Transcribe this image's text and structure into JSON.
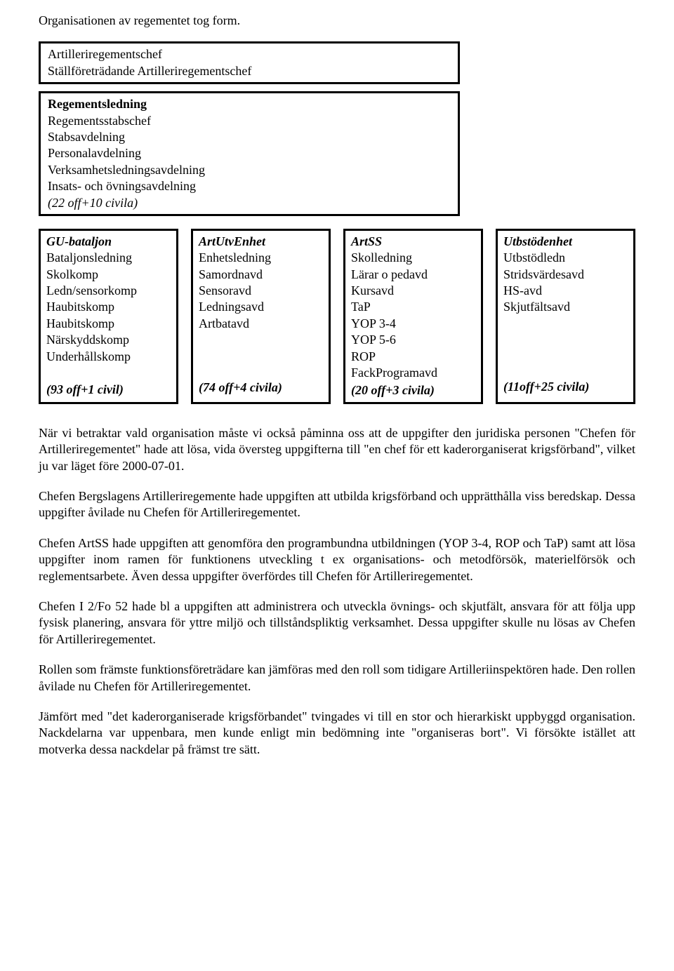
{
  "intro": "Organisationen av regementet tog form.",
  "box_top": {
    "line1": "Artilleriregementschef",
    "line2": "Ställföreträdande Artilleriregementschef"
  },
  "box_mid": {
    "head": "Regementsledning",
    "lines": [
      "Regementsstabschef",
      "Stabsavdelning",
      "Personalavdelning",
      "Verksamhetsledningsavdelning",
      "Insats- och övningsavdelning"
    ],
    "tail": "(22 off+10 civila)"
  },
  "units": [
    {
      "title": "GU-bataljon",
      "lines": [
        "Bataljonsledning",
        "Skolkomp",
        "Ledn/sensorkomp",
        "Haubitskomp",
        "Haubitskomp",
        "Närskyddskomp",
        "Underhållskomp"
      ],
      "spacers": 1,
      "tail": "(93 off+1 civil)"
    },
    {
      "title": "ArtUtvEnhet",
      "lines": [
        "Enhetsledning",
        "Samordnavd",
        "Sensoravd",
        "Ledningsavd",
        "Artbatavd"
      ],
      "spacers": 3,
      "tail": "(74 off+4 civila)"
    },
    {
      "title": "ArtSS",
      "lines": [
        "Skolledning",
        "Lärar o pedavd",
        "Kursavd",
        "TaP",
        "YOP 3-4",
        "YOP 5-6",
        "ROP",
        "FackProgramavd"
      ],
      "spacers": 0,
      "tail": "(20 off+3 civila)"
    },
    {
      "title": "Utbstödenhet",
      "lines": [
        "Utbstödledn",
        "Stridsvärdesavd",
        "HS-avd",
        "Skjutfältsavd"
      ],
      "spacers": 4,
      "tail": "(11off+25 civila)"
    }
  ],
  "paras": [
    "När vi betraktar vald organisation måste vi också påminna oss att de uppgifter den juridiska personen \"Chefen för Artilleriregementet\" hade att lösa, vida översteg uppgifterna till \"en chef för ett kaderorganiserat krigsförband\", vilket ju var läget före 2000-07-01.",
    "Chefen Bergslagens Artilleriregemente hade uppgiften att utbilda krigsförband och upprätthålla viss beredskap. Dessa uppgifter åvilade nu Chefen för Artilleriregementet.",
    "Chefen ArtSS hade uppgiften att genomföra den programbundna utbildningen (YOP 3-4, ROP och TaP) samt att lösa uppgifter inom ramen för funktionens utveckling t ex organisations- och metodförsök, materielförsök och reglementsarbete. Även dessa uppgifter överfördes till Chefen för Artilleriregementet.",
    "Chefen I 2/Fo 52 hade bl a uppgiften att administrera och utveckla övnings- och skjutfält, ansvara för att följa upp fysisk planering, ansvara för yttre miljö och tillståndspliktig verksamhet. Dessa uppgifter skulle nu lösas av Chefen för Artilleriregementet.",
    "Rollen som främste funktionsföreträdare kan jämföras med den roll som tidigare Artilleriinspektören hade. Den rollen åvilade nu Chefen för Artilleriregementet.",
    "Jämfört med \"det kaderorganiserade krigsförbandet\" tvingades vi till en stor och hierarkiskt uppbyggd organisation. Nackdelarna var uppenbara, men kunde enligt min bedömning inte \"organiseras bort\". Vi försökte istället att motverka dessa nackdelar på främst tre sätt."
  ]
}
